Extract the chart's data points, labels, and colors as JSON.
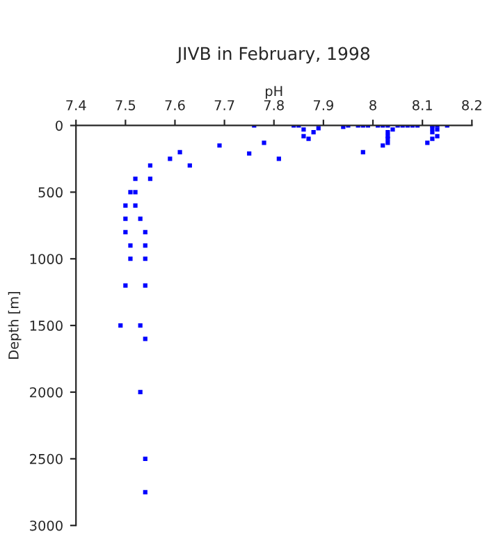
{
  "chart_data": {
    "type": "scatter",
    "title": "JIVB in February, 1998",
    "xlabel": "pH",
    "ylabel": "Depth [m]",
    "x": [
      7.76,
      7.69,
      7.78,
      7.75,
      7.81,
      7.59,
      7.61,
      7.63,
      7.55,
      7.55,
      7.52,
      7.51,
      7.52,
      7.5,
      7.52,
      7.53,
      7.5,
      7.5,
      7.54,
      7.51,
      7.54,
      7.51,
      7.54,
      7.5,
      7.54,
      7.49,
      7.53,
      7.54,
      7.53,
      7.54,
      7.54,
      7.84,
      7.85,
      7.86,
      7.86,
      7.87,
      7.88,
      7.89,
      7.94,
      7.95,
      7.97,
      7.98,
      7.99,
      7.98,
      8.01,
      8.02,
      8.03,
      8.03,
      8.03,
      8.03,
      8.03,
      8.02,
      8.04,
      8.05,
      8.06,
      8.07,
      8.08,
      8.09,
      8.12,
      8.12,
      8.12,
      8.13,
      8.13,
      8.13,
      8.12,
      8.11,
      8.15
    ],
    "values": [
      0,
      150,
      130,
      210,
      250,
      250,
      200,
      300,
      300,
      400,
      400,
      500,
      500,
      600,
      600,
      700,
      700,
      800,
      800,
      900,
      900,
      1000,
      1000,
      1200,
      1200,
      1500,
      1500,
      1600,
      2000,
      2500,
      2750,
      0,
      0,
      30,
      80,
      100,
      50,
      20,
      10,
      0,
      0,
      0,
      0,
      200,
      0,
      0,
      0,
      50,
      80,
      100,
      130,
      150,
      30,
      0,
      0,
      0,
      0,
      0,
      0,
      20,
      50,
      0,
      30,
      80,
      100,
      130,
      0
    ],
    "color": "#0000ff",
    "marker": "square",
    "xlim": [
      7.4,
      8.2
    ],
    "xticks": [
      7.4,
      7.5,
      7.6,
      7.7,
      7.8,
      7.9,
      8,
      8.1,
      8.2
    ],
    "ylim": [
      3000,
      0
    ],
    "yticks": [
      0,
      500,
      1000,
      1500,
      2000,
      2500,
      3000
    ],
    "grid": false,
    "legend": false
  }
}
